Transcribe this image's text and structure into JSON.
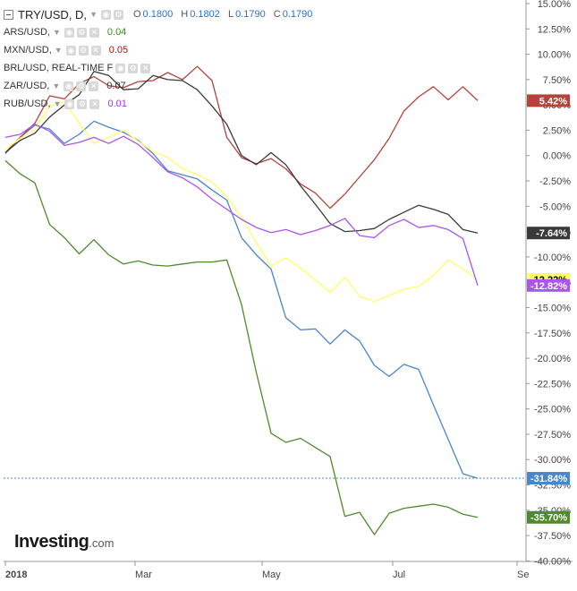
{
  "legend": {
    "main": {
      "label": "TRY/USD, D,",
      "o_label": "O",
      "o": "0.1800",
      "h_label": "H",
      "h": "0.1802",
      "l_label": "L",
      "l": "0.1790",
      "c_label": "C",
      "c": "0.1790"
    },
    "items": [
      {
        "label": "ARS/USD,",
        "value": "0.04",
        "color": "#3c8b1f"
      },
      {
        "label": "MXN/USD,",
        "value": "0.05",
        "color": "#a31515"
      },
      {
        "label": "BRL/USD, REAL-TIME F",
        "value": "",
        "color": "#333333"
      },
      {
        "label": "ZAR/USD,",
        "value": "0.07",
        "color": "#333333"
      },
      {
        "label": "RUB/USD,",
        "value": "0.01",
        "color": "#9b30ff"
      }
    ]
  },
  "watermark": {
    "brand": "Investing",
    "suffix": ".com"
  },
  "chart_data": {
    "type": "line",
    "x_ticks": [
      "2018",
      "Mar",
      "May",
      "Jul",
      "Se"
    ],
    "y_ticks": [
      "15.00%",
      "12.50%",
      "10.00%",
      "7.50%",
      "5.00%",
      "2.50%",
      "0.00%",
      "-2.50%",
      "-5.00%",
      "-7.50%",
      "-10.00%",
      "-12.50%",
      "-15.00%",
      "-17.50%",
      "-20.00%",
      "-22.50%",
      "-25.00%",
      "-27.50%",
      "-30.00%",
      "-32.50%",
      "-35.00%",
      "-37.50%",
      "-40.00%"
    ],
    "ylim": [
      -40,
      15
    ],
    "series": [
      {
        "name": "TRY/USD",
        "color": "#4a86c8",
        "end_label": "-31.84%",
        "label_text_color": "#ffffff",
        "values": [
          0.2,
          1.8,
          3,
          2.6,
          1.2,
          2.1,
          3.4,
          2.8,
          2.3,
          1.5,
          0.2,
          -1.5,
          -1.9,
          -2.3,
          -3.4,
          -4.4,
          -8.1,
          -9.8,
          -11.2,
          -16,
          -17.2,
          -17.1,
          -18.6,
          -17.2,
          -18.3,
          -20.7,
          -21.8,
          -20.6,
          -21.1,
          -24.6,
          -28,
          -31.4,
          -31.84
        ]
      },
      {
        "name": "ARS/USD",
        "color": "#4f8a2b",
        "end_label": "-35.70%",
        "label_text_color": "#ffffff",
        "values": [
          -0.5,
          -1.8,
          -2.7,
          -6.8,
          -8.1,
          -9.7,
          -8.3,
          -9.8,
          -10.7,
          -10.4,
          -10.8,
          -10.9,
          -10.7,
          -10.5,
          -10.5,
          -10.3,
          -14.7,
          -21.4,
          -27.4,
          -28.3,
          -27.9,
          -28.8,
          -29.7,
          -35.6,
          -35.2,
          -37.4,
          -35.3,
          -34.8,
          -34.6,
          -34.4,
          -34.7,
          -35.4,
          -35.7
        ]
      },
      {
        "name": "MXN/USD",
        "color": "#b5433b",
        "end_label": "5.42%",
        "label_text_color": "#ffffff",
        "values": [
          0.3,
          1.8,
          3.2,
          5.9,
          5.6,
          7.1,
          7.8,
          6.9,
          6.7,
          7.3,
          7.4,
          8.2,
          7.5,
          8.8,
          7.4,
          1.8,
          -0.2,
          -0.8,
          -0.3,
          -1.3,
          -2.8,
          -3.7,
          -5.2,
          -3.8,
          -2.1,
          -0.4,
          1.7,
          4.4,
          5.8,
          6.8,
          5.5,
          6.8,
          5.42
        ]
      },
      {
        "name": "BRL/USD",
        "color": "#3a3a3a",
        "end_label": "-7.64%",
        "label_text_color": "#ffffff",
        "values": [
          0.3,
          1.5,
          2.2,
          3.8,
          5,
          6,
          8.3,
          7.9,
          6.5,
          6.6,
          7.9,
          7.5,
          7.4,
          6.5,
          4.9,
          3.1,
          0,
          -0.9,
          0.3,
          -0.9,
          -3,
          -4.8,
          -6.7,
          -7.5,
          -7.4,
          -7.2,
          -6.3,
          -5.6,
          -4.9,
          -5.3,
          -5.8,
          -7.3,
          -7.64
        ]
      },
      {
        "name": "ZAR/USD",
        "color": "#ffff66",
        "end_label": "-12.22%",
        "label_text_color": "#000000",
        "values": [
          0.6,
          1.7,
          2.6,
          4.9,
          5.3,
          3.2,
          1.2,
          1.8,
          2.5,
          1.4,
          0.4,
          -0.2,
          -1.3,
          -1.9,
          -2.6,
          -4.1,
          -6.1,
          -8.6,
          -10.9,
          -10.1,
          -11.1,
          -12.3,
          -13.5,
          -12,
          -13.9,
          -14.4,
          -13.8,
          -13.2,
          -12.9,
          -11.8,
          -10.3,
          -11.2,
          -12.22
        ]
      },
      {
        "name": "RUB/USD",
        "color": "#aa55ee",
        "end_label": "-12.82%",
        "label_text_color": "#ffffff",
        "values": [
          1.8,
          2.1,
          3.1,
          2.4,
          1,
          1.3,
          1.8,
          1.2,
          1.9,
          1.1,
          -0.2,
          -1.6,
          -2.2,
          -3.1,
          -4.3,
          -5.3,
          -6.3,
          -7.1,
          -7.6,
          -7.3,
          -7.8,
          -7.4,
          -6.9,
          -6.2,
          -7.9,
          -8.1,
          -6.9,
          -6.3,
          -7.1,
          -6.9,
          -7.3,
          -8.2,
          -12.82
        ]
      }
    ]
  }
}
